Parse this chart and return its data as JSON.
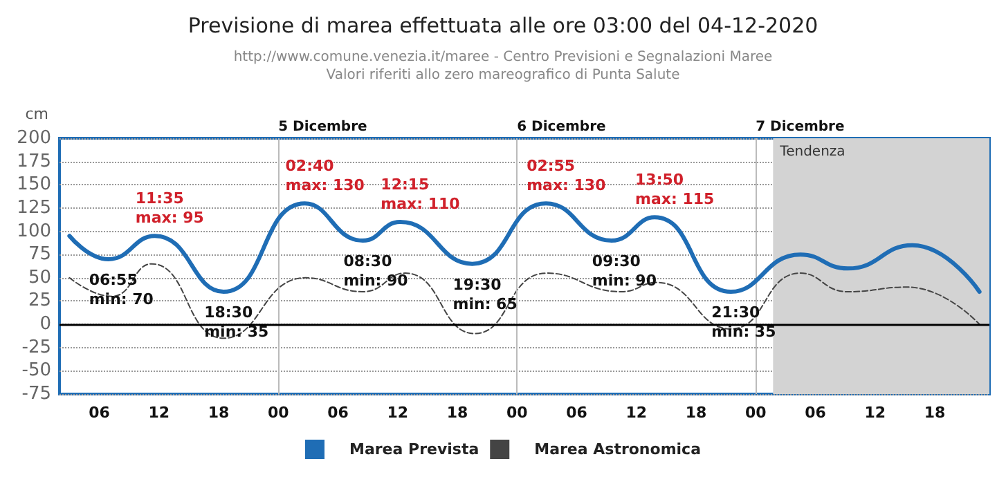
{
  "chart_data": {
    "type": "line",
    "title": "Previsione di marea effettuata alle ore 03:00 del 04-12-2020",
    "subtitle": "http://www.comune.venezia.it/maree - Centro Previsioni e Segnalazioni Maree\nValori riferiti allo zero mareografico di Punta Salute",
    "ylabel": "cm",
    "x": [
      "2020-12-04T03:00",
      "2020-12-04T06:55",
      "2020-12-04T11:35",
      "2020-12-04T18:30",
      "2020-12-05T02:40",
      "2020-12-05T08:30",
      "2020-12-05T12:15",
      "2020-12-05T19:30",
      "2020-12-06T02:55",
      "2020-12-06T09:30",
      "2020-12-06T13:50",
      "2020-12-06T21:30",
      "2020-12-07T04:30",
      "2020-12-07T09:15",
      "2020-12-07T15:45",
      "2020-12-07T22:30"
    ],
    "series": [
      {
        "name": "Marea Prevista",
        "color": "#1f6db5",
        "line_style": "solid",
        "values": [
          95,
          70,
          95,
          35,
          130,
          90,
          110,
          65,
          130,
          90,
          115,
          35,
          75,
          60,
          85,
          35
        ]
      },
      {
        "name": "Marea Astronomica",
        "color": "#444444",
        "line_style": "dashed",
        "x": [
          "2020-12-04T03:00",
          "2020-12-04T07:15",
          "2020-12-04T11:15",
          "2020-12-04T18:30",
          "2020-12-05T02:45",
          "2020-12-05T08:30",
          "2020-12-05T12:45",
          "2020-12-05T19:45",
          "2020-12-06T03:00",
          "2020-12-06T10:30",
          "2020-12-06T14:00",
          "2020-12-06T21:30",
          "2020-12-07T04:30",
          "2020-12-07T09:15",
          "2020-12-07T15:15",
          "2020-12-07T22:30"
        ],
        "values": [
          50,
          30,
          65,
          -15,
          50,
          35,
          55,
          -10,
          55,
          35,
          45,
          -5,
          55,
          35,
          40,
          0
        ]
      }
    ],
    "xlim": [
      "2020-12-04T02:00",
      "2020-12-07T23:30"
    ],
    "xticks": [
      {
        "value": "2020-12-04T06:00",
        "label": "06"
      },
      {
        "value": "2020-12-04T12:00",
        "label": "12"
      },
      {
        "value": "2020-12-04T18:00",
        "label": "18"
      },
      {
        "value": "2020-12-05T00:00",
        "label": "00"
      },
      {
        "value": "2020-12-05T06:00",
        "label": "06"
      },
      {
        "value": "2020-12-05T12:00",
        "label": "12"
      },
      {
        "value": "2020-12-05T18:00",
        "label": "18"
      },
      {
        "value": "2020-12-06T00:00",
        "label": "00"
      },
      {
        "value": "2020-12-06T06:00",
        "label": "06"
      },
      {
        "value": "2020-12-06T12:00",
        "label": "12"
      },
      {
        "value": "2020-12-06T18:00",
        "label": "18"
      },
      {
        "value": "2020-12-07T00:00",
        "label": "00"
      },
      {
        "value": "2020-12-07T06:00",
        "label": "06"
      },
      {
        "value": "2020-12-07T12:00",
        "label": "12"
      },
      {
        "value": "2020-12-07T18:00",
        "label": "18"
      }
    ],
    "ylim": [
      -75,
      200
    ],
    "yticks": [
      -75,
      -50,
      -25,
      0,
      25,
      50,
      75,
      100,
      125,
      150,
      175,
      200
    ],
    "grid": "y",
    "legend": "bottom",
    "marker": "none",
    "ref_lines": [
      {
        "axis": "x",
        "value": "2020-12-05T00:00",
        "label": "5 Dicembre",
        "color": "#bbbbbb"
      },
      {
        "axis": "x",
        "value": "2020-12-06T00:00",
        "label": "6 Dicembre",
        "color": "#bbbbbb"
      },
      {
        "axis": "x",
        "value": "2020-12-07T00:00",
        "label": "7 Dicembre",
        "color": "#bbbbbb"
      },
      {
        "axis": "y",
        "value": 0,
        "color": "#000000"
      }
    ],
    "bands": [
      {
        "axis": "x",
        "from": "2020-12-07T01:45",
        "to": "2020-12-07T23:30",
        "label": "Tendenza",
        "color": "#d3d3d3"
      }
    ],
    "annotations": [
      {
        "text": "06:55\nmin: 70",
        "x": "2020-12-04T06:55",
        "y": 70
      },
      {
        "text": "11:35\nmax: 95",
        "x": "2020-12-04T11:35",
        "y": 95
      },
      {
        "text": "18:30\nmin: 35",
        "x": "2020-12-04T18:30",
        "y": 35
      },
      {
        "text": "02:40\nmax: 130",
        "x": "2020-12-05T02:40",
        "y": 130
      },
      {
        "text": "08:30\nmin: 90",
        "x": "2020-12-05T08:30",
        "y": 90
      },
      {
        "text": "12:15\nmax: 110",
        "x": "2020-12-05T12:15",
        "y": 110
      },
      {
        "text": "19:30\nmin: 65",
        "x": "2020-12-05T19:30",
        "y": 65
      },
      {
        "text": "02:55\nmax: 130",
        "x": "2020-12-06T02:55",
        "y": 130
      },
      {
        "text": "09:30\nmin: 90",
        "x": "2020-12-06T09:30",
        "y": 90
      },
      {
        "text": "13:50\nmax: 115",
        "x": "2020-12-06T13:50",
        "y": 115
      },
      {
        "text": "21:30\nmin: 35",
        "x": "2020-12-06T21:30",
        "y": 35
      }
    ]
  }
}
